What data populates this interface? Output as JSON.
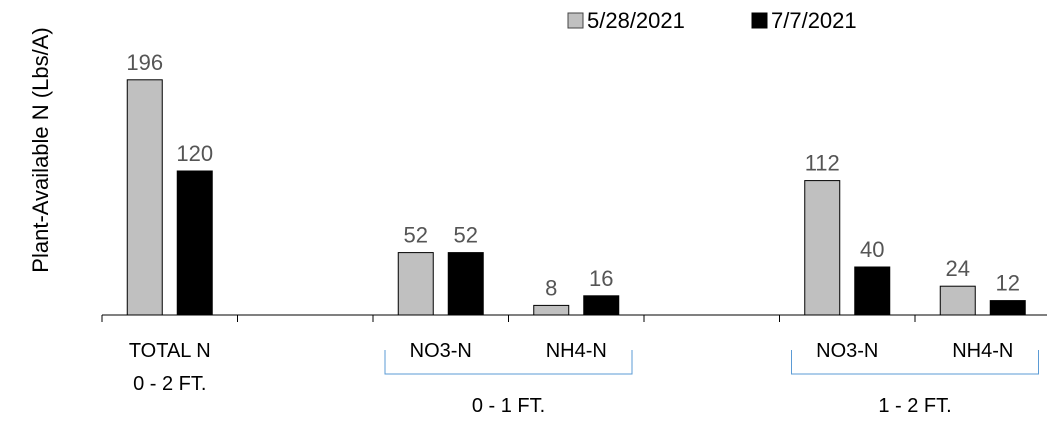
{
  "chart_data": {
    "type": "bar",
    "title": "",
    "ylabel": "Plant-Available N (Lbs/A)",
    "xlabel": "",
    "ylim": [
      0,
      200
    ],
    "grid": false,
    "legend_position": "top-right",
    "slots": [
      {
        "label": "TOTAL N",
        "sublabel": "0 - 2 FT."
      },
      {
        "label": "",
        "sublabel": ""
      },
      {
        "label": "NO3-N",
        "sublabel": ""
      },
      {
        "label": "NH4-N",
        "sublabel": ""
      },
      {
        "label": "",
        "sublabel": ""
      },
      {
        "label": "NO3-N",
        "sublabel": ""
      },
      {
        "label": "NH4-N",
        "sublabel": ""
      }
    ],
    "series": [
      {
        "name": "5/28/2021",
        "color": "#c0c0c0",
        "values": [
          196,
          null,
          52,
          8,
          null,
          112,
          24
        ]
      },
      {
        "name": "7/7/2021",
        "color": "#000000",
        "values": [
          120,
          null,
          52,
          16,
          null,
          40,
          12
        ]
      }
    ],
    "groups": [
      {
        "label": "0 - 1 FT.",
        "from": 2,
        "to": 3
      },
      {
        "label": "1 - 2 FT.",
        "from": 5,
        "to": 6
      }
    ]
  }
}
